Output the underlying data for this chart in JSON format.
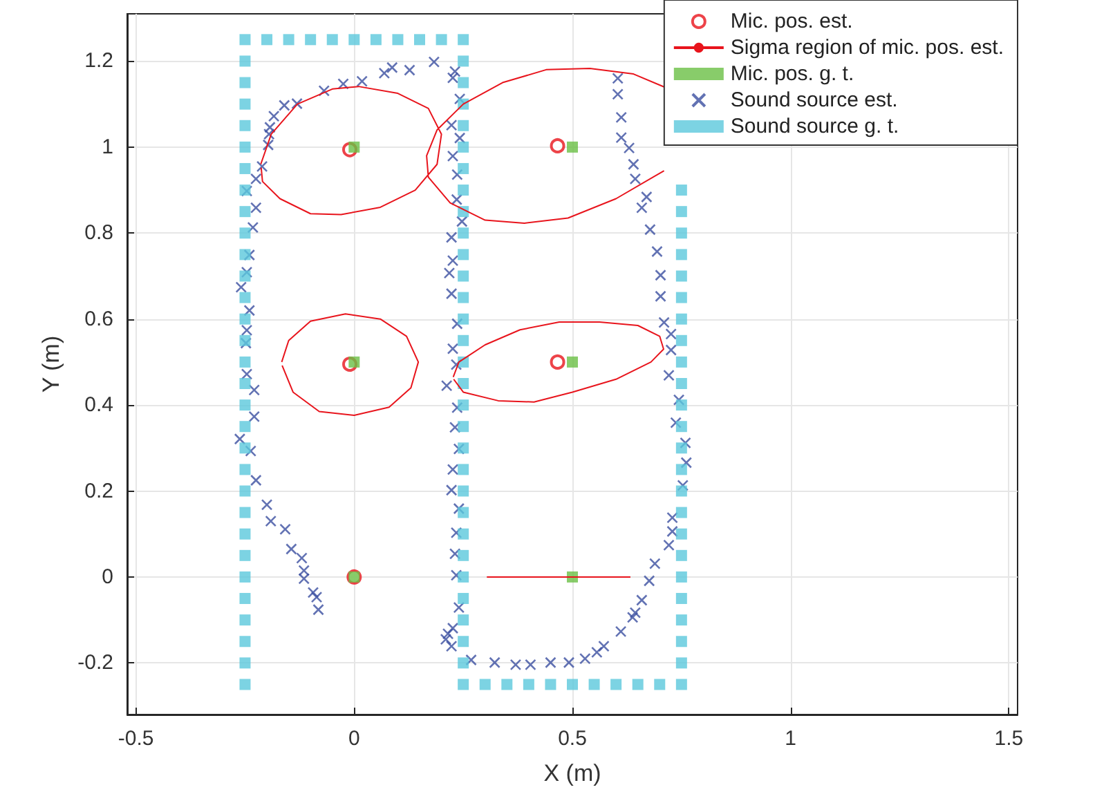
{
  "chart_data": {
    "type": "scatter",
    "xlabel": "X (m)",
    "ylabel": "Y (m)",
    "xlim": [
      -0.52,
      1.52
    ],
    "ylim": [
      -0.32,
      1.31
    ],
    "xticks": [
      -0.5,
      0,
      0.5,
      1,
      1.5
    ],
    "yticks": [
      -0.2,
      0,
      0.2,
      0.4,
      0.6,
      0.8,
      1,
      1.2
    ],
    "grid": true,
    "legend": "top right",
    "series": [
      {
        "name": "Mic. pos. est.",
        "marker": "circle",
        "color": "#e8141c",
        "x": [
          -0.01,
          0.466,
          -0.01,
          0.466,
          0
        ],
        "values": [
          0.994,
          1.003,
          0.495,
          0.5,
          0
        ]
      },
      {
        "name": "Sigma region of mic. pos. est.",
        "type": "line",
        "marker": "none",
        "color": "#e8141c",
        "x": [
          -0.214,
          -0.19,
          -0.13,
          -0.05,
          0.01,
          0.1,
          0.17,
          0.2,
          0.19,
          0.14,
          0.06,
          -0.03,
          -0.1,
          -0.17,
          -0.21,
          -0.213,
          null,
          0.71,
          0.64,
          0.54,
          0.44,
          0.34,
          0.25,
          0.19,
          0.166,
          0.17,
          0.22,
          0.3,
          0.39,
          0.49,
          0.6,
          0.71,
          null,
          -0.166,
          -0.15,
          -0.1,
          -0.02,
          0.06,
          0.12,
          0.147,
          0.13,
          0.08,
          0,
          -0.08,
          -0.14,
          -0.165,
          null,
          0.227,
          0.24,
          0.3,
          0.38,
          0.47,
          0.562,
          0.65,
          0.7,
          0.709,
          0.68,
          0.6,
          0.5,
          0.412,
          0.33,
          0.25,
          0.228,
          null,
          0.304,
          0.633
        ],
        "values": [
          0.96,
          1.03,
          1.1,
          1.135,
          1.141,
          1.125,
          1.09,
          1.03,
          0.96,
          0.9,
          0.86,
          0.843,
          0.845,
          0.88,
          0.92,
          0.952,
          null,
          1.14,
          1.17,
          1.183,
          1.18,
          1.15,
          1.1,
          1.04,
          0.98,
          0.93,
          0.87,
          0.83,
          0.823,
          0.835,
          0.88,
          0.945,
          null,
          0.5,
          0.55,
          0.595,
          0.612,
          0.6,
          0.56,
          0.5,
          0.44,
          0.395,
          0.376,
          0.385,
          0.43,
          0.492,
          null,
          0.465,
          0.5,
          0.54,
          0.575,
          0.593,
          0.593,
          0.585,
          0.56,
          0.53,
          0.5,
          0.46,
          0.43,
          0.407,
          0.41,
          0.43,
          0.46,
          null,
          0,
          0
        ]
      },
      {
        "name": "Mic. pos. g. t.",
        "marker": "square",
        "color": "#6abf45",
        "x": [
          0,
          0.5,
          0,
          0.5,
          0,
          0.5
        ],
        "values": [
          1,
          1,
          0.5,
          0.5,
          0,
          0
        ]
      },
      {
        "name": "Sound source est.",
        "marker": "cross",
        "color": "#3b4fa0",
        "x": [
          0.183,
          0.127,
          0.087,
          0.069,
          0.018,
          -0.025,
          -0.069,
          -0.131,
          -0.16,
          -0.184,
          -0.193,
          -0.195,
          -0.197,
          -0.211,
          -0.225,
          -0.246,
          -0.225,
          -0.232,
          -0.24,
          -0.246,
          -0.259,
          -0.24,
          -0.246,
          -0.248,
          -0.246,
          -0.229,
          -0.229,
          -0.262,
          -0.237,
          -0.225,
          -0.2,
          -0.191,
          -0.158,
          -0.144,
          -0.12,
          -0.115,
          -0.115,
          -0.094,
          -0.086,
          -0.082,
          0.231,
          0.226,
          0.242,
          0.223,
          0.242,
          0.226,
          0.236,
          0.235,
          0.247,
          0.223,
          0.226,
          0.218,
          0.223,
          0.236,
          0.226,
          0.234,
          0.212,
          0.236,
          0.231,
          0.24,
          0.226,
          0.223,
          0.24,
          0.234,
          0.231,
          0.234,
          0.24,
          0.226,
          0.215,
          0.21,
          0.223,
          0.268,
          0.322,
          0.37,
          0.404,
          0.45,
          0.492,
          0.529,
          0.556,
          0.572,
          0.611,
          0.638,
          0.644,
          0.659,
          0.676,
          0.689,
          0.721,
          0.729,
          0.729,
          0.753,
          0.761,
          0.759,
          0.737,
          0.744,
          0.721,
          0.726,
          0.726,
          0.71,
          0.702,
          0.702,
          0.694,
          0.678,
          0.659,
          0.67,
          0.644,
          0.64,
          0.63,
          0.612,
          0.612,
          0.604,
          0.604
        ],
        "values": [
          1.198,
          1.179,
          1.185,
          1.172,
          1.153,
          1.147,
          1.131,
          1.101,
          1.097,
          1.072,
          1.046,
          1.03,
          1.005,
          0.955,
          0.926,
          0.898,
          0.859,
          0.813,
          0.749,
          0.709,
          0.674,
          0.62,
          0.574,
          0.544,
          0.472,
          0.435,
          0.373,
          0.321,
          0.293,
          0.225,
          0.168,
          0.13,
          0.111,
          0.065,
          0.044,
          0.015,
          -0.004,
          -0.036,
          -0.047,
          -0.076,
          1.176,
          1.161,
          1.112,
          1.051,
          1.021,
          0.979,
          0.936,
          0.878,
          0.827,
          0.79,
          0.736,
          0.707,
          0.659,
          0.589,
          0.531,
          0.494,
          0.445,
          0.394,
          0.348,
          0.298,
          0.25,
          0.202,
          0.159,
          0.103,
          0.054,
          0.004,
          -0.071,
          -0.119,
          -0.132,
          -0.145,
          -0.161,
          -0.193,
          -0.199,
          -0.204,
          -0.204,
          -0.199,
          -0.199,
          -0.19,
          -0.175,
          -0.161,
          -0.127,
          -0.094,
          -0.083,
          -0.054,
          -0.009,
          0.031,
          0.074,
          0.106,
          0.138,
          0.213,
          0.266,
          0.312,
          0.359,
          0.412,
          0.469,
          0.528,
          0.565,
          0.592,
          0.653,
          0.702,
          0.757,
          0.808,
          0.859,
          0.884,
          0.926,
          0.96,
          0.998,
          1.022,
          1.069,
          1.123,
          1.16
        ]
      },
      {
        "name": "Sound source g. t.",
        "marker": "square",
        "color": "#5bc8dc",
        "x": [
          -0.25,
          -0.25,
          -0.25,
          -0.25,
          -0.25,
          -0.25,
          -0.25,
          -0.25,
          -0.25,
          -0.25,
          -0.25,
          -0.25,
          -0.25,
          -0.25,
          -0.25,
          -0.25,
          -0.25,
          -0.25,
          -0.25,
          -0.25,
          -0.25,
          -0.25,
          -0.25,
          -0.25,
          -0.25,
          -0.25,
          -0.25,
          -0.25,
          -0.25,
          -0.25,
          -0.25,
          -0.2,
          -0.15,
          -0.1,
          -0.05,
          0,
          0.05,
          0.1,
          0.15,
          0.2,
          0.25,
          0.25,
          0.25,
          0.25,
          0.25,
          0.25,
          0.25,
          0.25,
          0.25,
          0.25,
          0.25,
          0.25,
          0.25,
          0.25,
          0.25,
          0.25,
          0.25,
          0.25,
          0.25,
          0.25,
          0.25,
          0.25,
          0.25,
          0.25,
          0.25,
          0.25,
          0.25,
          0.25,
          0.25,
          0.25,
          0.25,
          0.3,
          0.35,
          0.4,
          0.45,
          0.5,
          0.55,
          0.6,
          0.65,
          0.7,
          0.75,
          0.75,
          0.75,
          0.75,
          0.75,
          0.75,
          0.75,
          0.75,
          0.75,
          0.75,
          0.75,
          0.75,
          0.75,
          0.75,
          0.75,
          0.75,
          0.75,
          0.75,
          0.75,
          0.75,
          0.75,
          0.75,
          0.75,
          0.75
        ],
        "values": [
          -0.25,
          -0.2,
          -0.15,
          -0.1,
          -0.05,
          0,
          0.05,
          0.1,
          0.15,
          0.2,
          0.25,
          0.3,
          0.35,
          0.4,
          0.45,
          0.5,
          0.55,
          0.6,
          0.65,
          0.7,
          0.75,
          0.8,
          0.85,
          0.9,
          0.95,
          1,
          1.05,
          1.1,
          1.15,
          1.2,
          1.25,
          1.25,
          1.25,
          1.25,
          1.25,
          1.25,
          1.25,
          1.25,
          1.25,
          1.25,
          1.25,
          1.2,
          1.15,
          1.1,
          1.05,
          1,
          0.95,
          0.9,
          0.85,
          0.8,
          0.75,
          0.7,
          0.65,
          0.6,
          0.55,
          0.5,
          0.45,
          0.4,
          0.35,
          0.3,
          0.25,
          0.2,
          0.15,
          0.1,
          0.05,
          0,
          -0.05,
          -0.1,
          -0.15,
          -0.2,
          -0.25,
          -0.25,
          -0.25,
          -0.25,
          -0.25,
          -0.25,
          -0.25,
          -0.25,
          -0.25,
          -0.25,
          -0.25,
          -0.2,
          -0.15,
          -0.1,
          -0.05,
          0,
          0.05,
          0.1,
          0.15,
          0.2,
          0.25,
          0.3,
          0.35,
          0.4,
          0.45,
          0.5,
          0.55,
          0.6,
          0.65,
          0.7,
          0.75,
          0.8,
          0.85,
          0.9
        ]
      }
    ]
  }
}
